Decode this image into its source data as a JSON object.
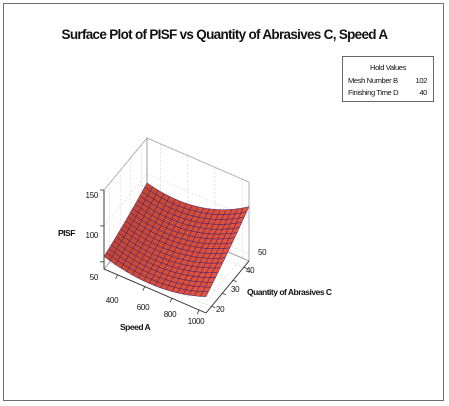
{
  "chart_data": {
    "type": "surface",
    "title": "Surface Plot of PISF vs Quantity of Abrasives C, Speed A",
    "zlabel": "PISF",
    "xlabel": "Speed A",
    "ylabel": "Quantity of Abrasives C",
    "x_ticks": [
      "400",
      "600",
      "800",
      "1000"
    ],
    "y_ticks": [
      "20",
      "30",
      "40",
      "50"
    ],
    "z_ticks": [
      "50",
      "100",
      "150"
    ],
    "xlim": [
      300,
      1050
    ],
    "ylim": [
      15,
      55
    ],
    "zlim": [
      40,
      150
    ],
    "hold_values": {
      "title": "Hold Values",
      "rows": [
        {
          "name": "Mesh Number B",
          "value": "102"
        },
        {
          "name": "Finishing Time D",
          "value": "40"
        }
      ]
    },
    "surface_color": "#e8543c",
    "mesh_color": "#2a1a78",
    "sample_points": [
      {
        "speed": 300,
        "abrasives": 15,
        "pisf": 63
      },
      {
        "speed": 300,
        "abrasives": 55,
        "pisf": 118
      },
      {
        "speed": 650,
        "abrasives": 35,
        "pisf": 47
      },
      {
        "speed": 1050,
        "abrasives": 15,
        "pisf": 75
      },
      {
        "speed": 1050,
        "abrasives": 55,
        "pisf": 150
      }
    ]
  }
}
